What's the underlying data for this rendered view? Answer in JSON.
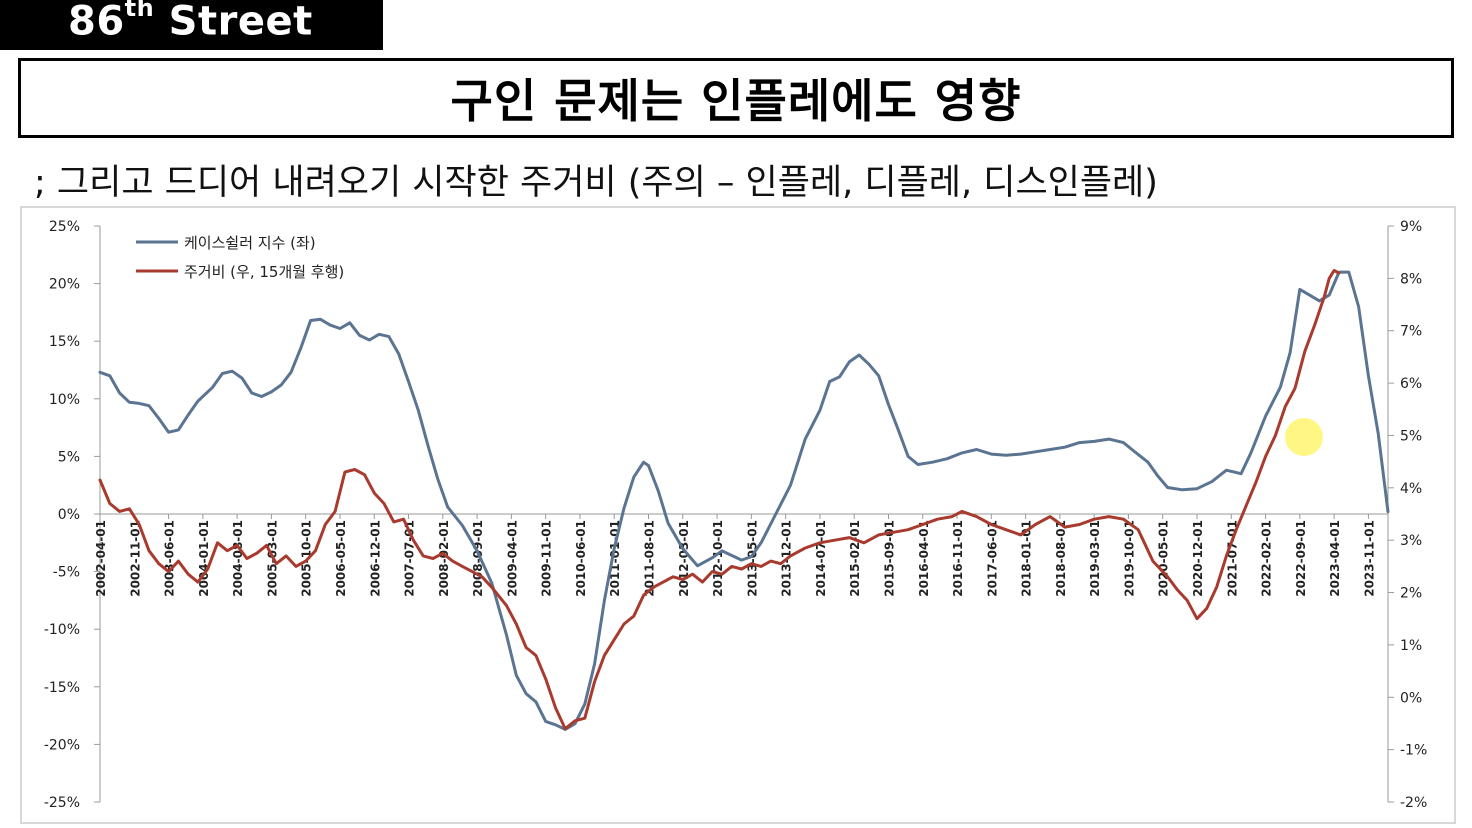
{
  "header": {
    "brand_main": "86",
    "brand_sup": "th",
    "brand_rest": " Street",
    "title": "구인 문제는 인플레에도 영향",
    "subtitle": "; 그리고 드디어 내려오기 시작한 주거비 (주의 – 인플레, 디플레, 디스인플레)"
  },
  "chart_data": {
    "type": "line",
    "title": "",
    "xlabel": "",
    "ylabel_left": "",
    "ylabel_right": "",
    "y_left": {
      "ticks": [
        "25%",
        "20%",
        "15%",
        "10%",
        "5%",
        "0%",
        "-5%",
        "-10%",
        "-15%",
        "-20%",
        "-25%"
      ],
      "lim": [
        -25,
        25
      ]
    },
    "y_right": {
      "ticks": [
        "9%",
        "8%",
        "7%",
        "6%",
        "5%",
        "4%",
        "3%",
        "2%",
        "1%",
        "0%",
        "-1%",
        "-2%"
      ],
      "lim": [
        -2,
        9
      ]
    },
    "x_ticks": [
      "2002-04-01",
      "2002-11-01",
      "2003-06-01",
      "2004-01-01",
      "2004-08-01",
      "2005-03-01",
      "2005-10-01",
      "2006-05-01",
      "2006-12-01",
      "2007-07-01",
      "2008-02-01",
      "2008-09-01",
      "2009-04-01",
      "2009-11-01",
      "2010-06-01",
      "2011-01-01",
      "2011-08-01",
      "2012-03-01",
      "2012-10-01",
      "2013-05-01",
      "2013-12-01",
      "2014-07-01",
      "2015-02-01",
      "2015-09-01",
      "2016-04-01",
      "2016-11-01",
      "2017-06-01",
      "2018-01-01",
      "2018-08-01",
      "2019-03-01",
      "2019-10-01",
      "2020-05-01",
      "2020-12-01",
      "2021-07-01",
      "2022-02-01",
      "2022-09-01",
      "2023-04-01",
      "2023-11-01"
    ],
    "x_range": [
      "2002-04-01",
      "2024-03-01"
    ],
    "grid": false,
    "legend_position": "top-left",
    "series": [
      {
        "name": "케이스쉴러 지수 (좌)",
        "axis": "left",
        "color": "#5a7491",
        "points": [
          [
            "2002-04",
            12.3
          ],
          [
            "2002-06",
            12.0
          ],
          [
            "2002-08",
            10.5
          ],
          [
            "2002-10",
            9.7
          ],
          [
            "2002-12",
            9.6
          ],
          [
            "2003-02",
            9.4
          ],
          [
            "2003-04",
            8.3
          ],
          [
            "2003-06",
            7.1
          ],
          [
            "2003-08",
            7.3
          ],
          [
            "2003-10",
            8.6
          ],
          [
            "2003-12",
            9.8
          ],
          [
            "2004-03",
            11.0
          ],
          [
            "2004-05",
            12.2
          ],
          [
            "2004-07",
            12.4
          ],
          [
            "2004-09",
            11.8
          ],
          [
            "2004-11",
            10.5
          ],
          [
            "2005-01",
            10.2
          ],
          [
            "2005-03",
            10.6
          ],
          [
            "2005-05",
            11.2
          ],
          [
            "2005-07",
            12.3
          ],
          [
            "2005-09",
            14.4
          ],
          [
            "2005-11",
            16.8
          ],
          [
            "2006-01",
            16.9
          ],
          [
            "2006-03",
            16.4
          ],
          [
            "2006-05",
            16.1
          ],
          [
            "2006-07",
            16.6
          ],
          [
            "2006-09",
            15.5
          ],
          [
            "2006-11",
            15.1
          ],
          [
            "2007-01",
            15.6
          ],
          [
            "2007-03",
            15.4
          ],
          [
            "2007-05",
            13.9
          ],
          [
            "2007-07",
            11.5
          ],
          [
            "2007-09",
            9.0
          ],
          [
            "2007-11",
            5.9
          ],
          [
            "2008-01",
            3.0
          ],
          [
            "2008-03",
            0.6
          ],
          [
            "2008-06",
            -1.0
          ],
          [
            "2008-09",
            -3.2
          ],
          [
            "2008-12",
            -6.0
          ],
          [
            "2009-03",
            -10.5
          ],
          [
            "2009-05",
            -14.0
          ],
          [
            "2009-07",
            -15.6
          ],
          [
            "2009-09",
            -16.3
          ],
          [
            "2009-11",
            -18.0
          ],
          [
            "2010-01",
            -18.3
          ],
          [
            "2010-03",
            -18.7
          ],
          [
            "2010-05",
            -18.2
          ],
          [
            "2010-07",
            -16.5
          ],
          [
            "2010-09",
            -13.0
          ],
          [
            "2010-11",
            -7.5
          ],
          [
            "2011-01",
            -3.0
          ],
          [
            "2011-03",
            0.5
          ],
          [
            "2011-05",
            3.2
          ],
          [
            "2011-07",
            4.5
          ],
          [
            "2011-08",
            4.2
          ],
          [
            "2011-10",
            2.0
          ],
          [
            "2011-12",
            -0.8
          ],
          [
            "2012-03",
            -3.0
          ],
          [
            "2012-06",
            -4.5
          ],
          [
            "2012-09",
            -3.8
          ],
          [
            "2012-11",
            -3.2
          ],
          [
            "2013-01",
            -3.6
          ],
          [
            "2013-03",
            -4.0
          ],
          [
            "2013-05",
            -3.7
          ],
          [
            "2013-07",
            -2.5
          ],
          [
            "2013-10",
            0.0
          ],
          [
            "2014-01",
            2.5
          ],
          [
            "2014-04",
            6.5
          ],
          [
            "2014-07",
            9.0
          ],
          [
            "2014-09",
            11.5
          ],
          [
            "2014-11",
            11.9
          ],
          [
            "2015-01",
            13.2
          ],
          [
            "2015-03",
            13.8
          ],
          [
            "2015-05",
            13.0
          ],
          [
            "2015-07",
            12.0
          ],
          [
            "2015-09",
            9.5
          ],
          [
            "2015-11",
            7.3
          ],
          [
            "2016-01",
            5.0
          ],
          [
            "2016-03",
            4.3
          ],
          [
            "2016-06",
            4.5
          ],
          [
            "2016-09",
            4.8
          ],
          [
            "2016-12",
            5.3
          ],
          [
            "2017-03",
            5.6
          ],
          [
            "2017-06",
            5.2
          ],
          [
            "2017-09",
            5.1
          ],
          [
            "2017-12",
            5.2
          ],
          [
            "2018-03",
            5.4
          ],
          [
            "2018-06",
            5.6
          ],
          [
            "2018-09",
            5.8
          ],
          [
            "2018-12",
            6.2
          ],
          [
            "2019-03",
            6.3
          ],
          [
            "2019-06",
            6.5
          ],
          [
            "2019-09",
            6.2
          ],
          [
            "2019-11",
            5.5
          ],
          [
            "2020-02",
            4.5
          ],
          [
            "2020-04",
            3.3
          ],
          [
            "2020-06",
            2.3
          ],
          [
            "2020-09",
            2.1
          ],
          [
            "2020-12",
            2.2
          ],
          [
            "2021-03",
            2.8
          ],
          [
            "2021-06",
            3.8
          ],
          [
            "2021-09",
            3.5
          ],
          [
            "2021-11",
            5.3
          ],
          [
            "2022-02",
            8.5
          ],
          [
            "2022-05",
            11.0
          ],
          [
            "2022-07",
            14.0
          ],
          [
            "2022-09",
            19.5
          ],
          [
            "2022-11",
            19.0
          ],
          [
            "2023-01",
            18.5
          ],
          [
            "2023-03",
            19.0
          ],
          [
            "2023-05",
            21.0
          ],
          [
            "2023-07",
            21.0
          ],
          [
            "2023-09",
            18.0
          ],
          [
            "2023-11",
            12.0
          ],
          [
            "2024-01",
            7.0
          ],
          [
            "2024-03",
            0.2
          ]
        ]
      },
      {
        "name": "주거비 (우, 15개월 후행)",
        "axis": "right",
        "color": "#a83a2e",
        "points": [
          [
            "2002-04",
            4.15
          ],
          [
            "2002-06",
            3.7
          ],
          [
            "2002-08",
            3.55
          ],
          [
            "2002-10",
            3.6
          ],
          [
            "2002-12",
            3.3
          ],
          [
            "2003-02",
            2.8
          ],
          [
            "2003-04",
            2.55
          ],
          [
            "2003-06",
            2.4
          ],
          [
            "2003-08",
            2.6
          ],
          [
            "2003-10",
            2.35
          ],
          [
            "2003-12",
            2.2
          ],
          [
            "2004-02",
            2.45
          ],
          [
            "2004-04",
            2.95
          ],
          [
            "2004-06",
            2.8
          ],
          [
            "2004-08",
            2.9
          ],
          [
            "2004-10",
            2.65
          ],
          [
            "2004-12",
            2.75
          ],
          [
            "2005-02",
            2.9
          ],
          [
            "2005-04",
            2.55
          ],
          [
            "2005-06",
            2.7
          ],
          [
            "2005-08",
            2.5
          ],
          [
            "2005-10",
            2.6
          ],
          [
            "2005-12",
            2.8
          ],
          [
            "2006-02",
            3.3
          ],
          [
            "2006-04",
            3.55
          ],
          [
            "2006-06",
            4.3
          ],
          [
            "2006-08",
            4.35
          ],
          [
            "2006-10",
            4.25
          ],
          [
            "2006-12",
            3.9
          ],
          [
            "2007-02",
            3.7
          ],
          [
            "2007-04",
            3.35
          ],
          [
            "2007-06",
            3.4
          ],
          [
            "2007-08",
            3.0
          ],
          [
            "2007-10",
            2.7
          ],
          [
            "2007-12",
            2.65
          ],
          [
            "2008-02",
            2.75
          ],
          [
            "2008-04",
            2.6
          ],
          [
            "2008-06",
            2.5
          ],
          [
            "2008-08",
            2.4
          ],
          [
            "2008-10",
            2.3
          ],
          [
            "2008-12",
            2.1
          ],
          [
            "2009-03",
            1.75
          ],
          [
            "2009-05",
            1.4
          ],
          [
            "2009-07",
            0.95
          ],
          [
            "2009-09",
            0.8
          ],
          [
            "2009-11",
            0.35
          ],
          [
            "2010-01",
            -0.2
          ],
          [
            "2010-03",
            -0.6
          ],
          [
            "2010-05",
            -0.45
          ],
          [
            "2010-07",
            -0.4
          ],
          [
            "2010-09",
            0.3
          ],
          [
            "2010-11",
            0.8
          ],
          [
            "2011-01",
            1.1
          ],
          [
            "2011-03",
            1.4
          ],
          [
            "2011-05",
            1.55
          ],
          [
            "2011-07",
            1.95
          ],
          [
            "2011-09",
            2.1
          ],
          [
            "2011-11",
            2.2
          ],
          [
            "2012-01",
            2.3
          ],
          [
            "2012-03",
            2.25
          ],
          [
            "2012-05",
            2.35
          ],
          [
            "2012-07",
            2.2
          ],
          [
            "2012-09",
            2.4
          ],
          [
            "2012-11",
            2.35
          ],
          [
            "2013-01",
            2.5
          ],
          [
            "2013-03",
            2.45
          ],
          [
            "2013-05",
            2.55
          ],
          [
            "2013-07",
            2.5
          ],
          [
            "2013-09",
            2.6
          ],
          [
            "2013-11",
            2.55
          ],
          [
            "2014-01",
            2.7
          ],
          [
            "2014-04",
            2.85
          ],
          [
            "2014-07",
            2.95
          ],
          [
            "2014-10",
            3.0
          ],
          [
            "2015-01",
            3.05
          ],
          [
            "2015-04",
            2.95
          ],
          [
            "2015-07",
            3.1
          ],
          [
            "2015-10",
            3.15
          ],
          [
            "2016-01",
            3.2
          ],
          [
            "2016-04",
            3.3
          ],
          [
            "2016-07",
            3.4
          ],
          [
            "2016-10",
            3.45
          ],
          [
            "2016-12",
            3.55
          ],
          [
            "2017-03",
            3.45
          ],
          [
            "2017-06",
            3.3
          ],
          [
            "2017-09",
            3.2
          ],
          [
            "2017-12",
            3.1
          ],
          [
            "2018-03",
            3.3
          ],
          [
            "2018-06",
            3.45
          ],
          [
            "2018-09",
            3.25
          ],
          [
            "2018-12",
            3.3
          ],
          [
            "2019-03",
            3.4
          ],
          [
            "2019-06",
            3.45
          ],
          [
            "2019-09",
            3.4
          ],
          [
            "2019-12",
            3.2
          ],
          [
            "2020-03",
            2.6
          ],
          [
            "2020-06",
            2.3
          ],
          [
            "2020-08",
            2.05
          ],
          [
            "2020-10",
            1.85
          ],
          [
            "2020-12",
            1.5
          ],
          [
            "2021-02",
            1.7
          ],
          [
            "2021-04",
            2.1
          ],
          [
            "2021-06",
            2.7
          ],
          [
            "2021-08",
            3.2
          ],
          [
            "2021-10",
            3.65
          ],
          [
            "2021-12",
            4.1
          ],
          [
            "2022-02",
            4.6
          ],
          [
            "2022-04",
            5.0
          ],
          [
            "2022-06",
            5.55
          ],
          [
            "2022-08",
            5.9
          ],
          [
            "2022-10",
            6.6
          ],
          [
            "2022-12",
            7.1
          ],
          [
            "2023-02",
            7.65
          ],
          [
            "2023-03",
            8.0
          ],
          [
            "2023-04",
            8.15
          ],
          [
            "2023-05",
            8.1
          ]
        ]
      }
    ]
  },
  "colors": {
    "axis": "#9a9a9a",
    "brand_bg": "#000000",
    "highlight": "#fff35a"
  }
}
